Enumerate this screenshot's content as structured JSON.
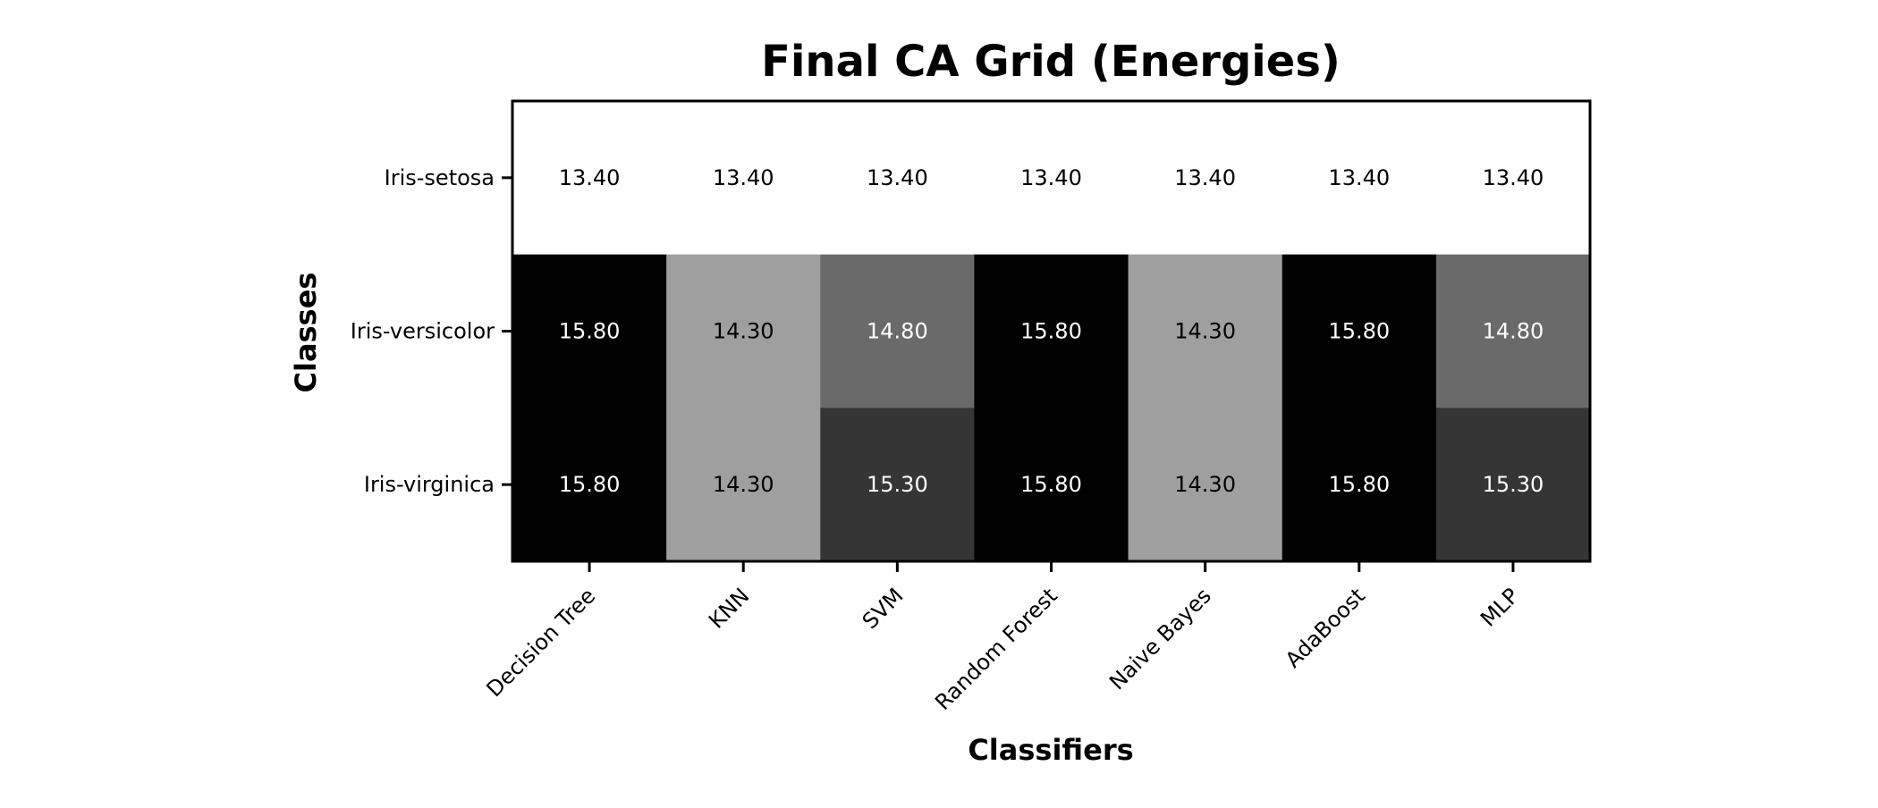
{
  "chart_data": {
    "type": "heatmap",
    "title": "Final CA Grid (Energies)",
    "xlabel": "Classifiers",
    "ylabel": "Classes",
    "x_categories": [
      "Decision Tree",
      "KNN",
      "SVM",
      "Random Forest",
      "Naive Bayes",
      "AdaBoost",
      "MLP"
    ],
    "y_categories": [
      "Iris-setosa",
      "Iris-versicolor",
      "Iris-virginica"
    ],
    "values": [
      [
        13.4,
        13.4,
        13.4,
        13.4,
        13.4,
        13.4,
        13.4
      ],
      [
        15.8,
        14.3,
        14.8,
        15.8,
        14.3,
        15.8,
        14.8
      ],
      [
        15.8,
        14.3,
        15.3,
        15.8,
        14.3,
        15.8,
        15.3
      ]
    ],
    "value_labels": [
      [
        "13.40",
        "13.40",
        "13.40",
        "13.40",
        "13.40",
        "13.40",
        "13.40"
      ],
      [
        "15.80",
        "14.30",
        "14.80",
        "15.80",
        "14.30",
        "15.80",
        "14.80"
      ],
      [
        "15.80",
        "14.30",
        "15.30",
        "15.80",
        "14.30",
        "15.80",
        "15.30"
      ]
    ],
    "colormap": "reversed-grayscale",
    "color_range": [
      13.4,
      15.8
    ],
    "low_color": "#ffffff",
    "high_color": "#000000",
    "grid": false
  }
}
